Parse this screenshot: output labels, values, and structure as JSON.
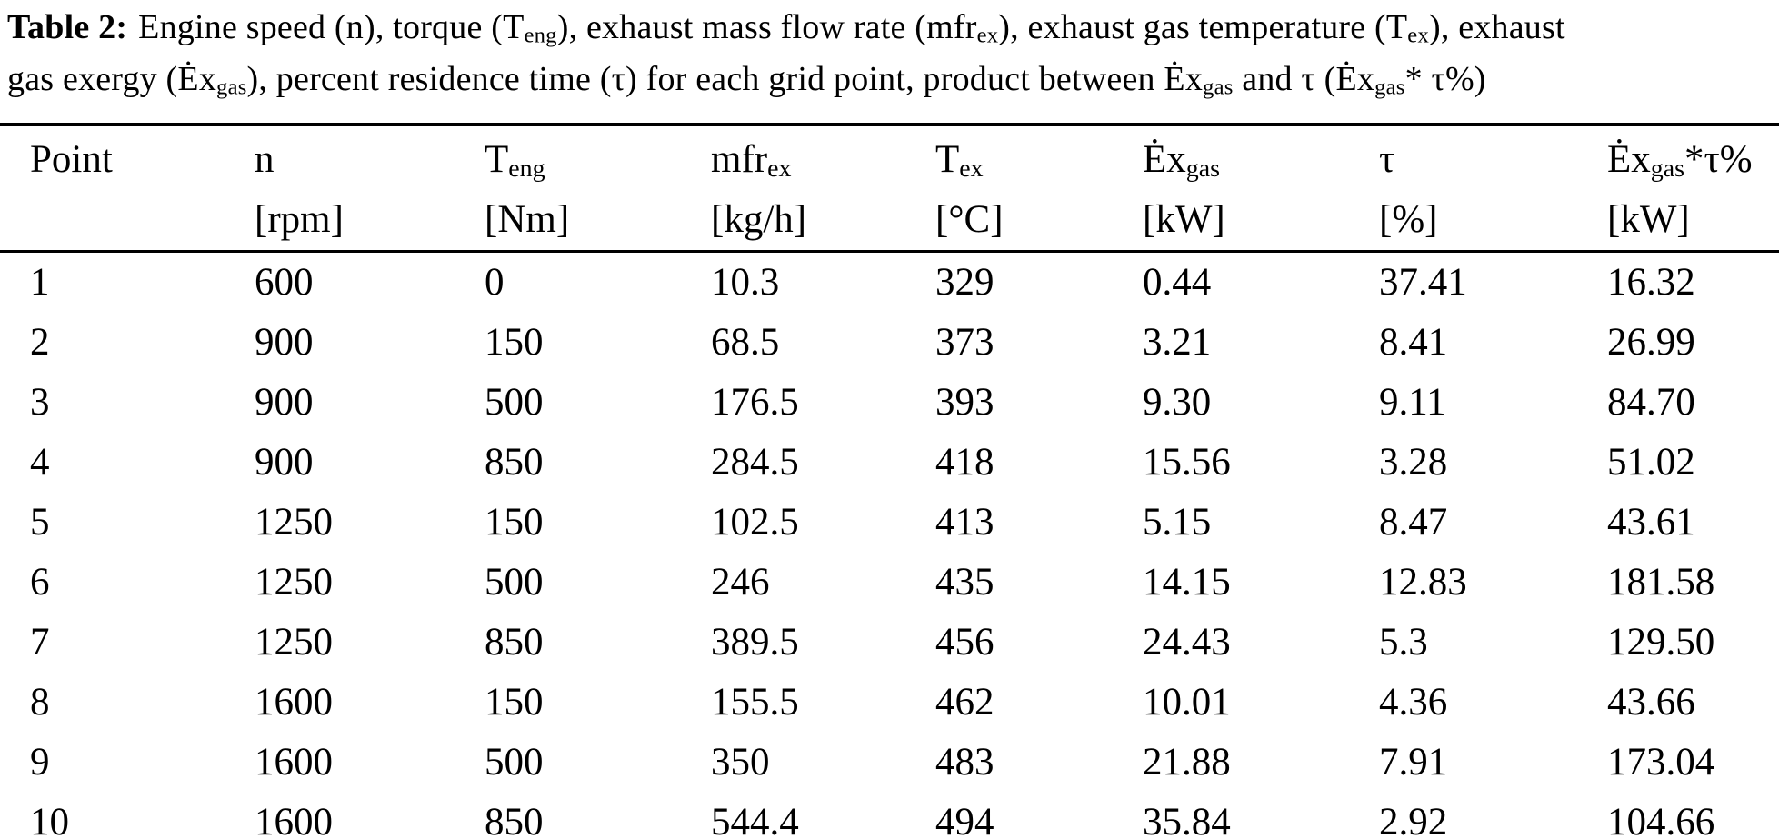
{
  "caption": {
    "line1": [
      {
        "t": "Table 2:",
        "style": "bold"
      },
      {
        "t": "Engine speed (n), torque (T"
      },
      {
        "t": "eng",
        "style": "sub"
      },
      {
        "t": "), exhaust mass flow rate (mfr"
      },
      {
        "t": "ex",
        "style": "sub"
      },
      {
        "t": "), exhaust gas temperature (T"
      },
      {
        "t": "ex",
        "style": "sub"
      },
      {
        "t": "), exhaust"
      }
    ],
    "line2": [
      {
        "t": "gas exergy (Ėx"
      },
      {
        "t": "gas",
        "style": "sub"
      },
      {
        "t": "), percent residence time (τ) for each grid point, product between Ėx"
      },
      {
        "t": "gas",
        "style": "sub"
      },
      {
        "t": " and τ (Ėx"
      },
      {
        "t": "gas",
        "style": "sub"
      },
      {
        "t": "* τ%)"
      }
    ]
  },
  "table": {
    "columns": [
      {
        "parts": [
          {
            "t": "Point"
          }
        ],
        "unit": ""
      },
      {
        "parts": [
          {
            "t": "n"
          }
        ],
        "unit": "[rpm]"
      },
      {
        "parts": [
          {
            "t": "T"
          },
          {
            "t": "eng",
            "style": "sub"
          }
        ],
        "unit": "[Nm]"
      },
      {
        "parts": [
          {
            "t": "mfr"
          },
          {
            "t": "ex",
            "style": "sub"
          }
        ],
        "unit": "[kg/h]"
      },
      {
        "parts": [
          {
            "t": "T"
          },
          {
            "t": "ex",
            "style": "sub"
          }
        ],
        "unit": "[°C]"
      },
      {
        "parts": [
          {
            "t": "Ėx"
          },
          {
            "t": "gas",
            "style": "sub"
          }
        ],
        "unit": "[kW]"
      },
      {
        "parts": [
          {
            "t": "τ"
          }
        ],
        "unit": "[%]"
      },
      {
        "parts": [
          {
            "t": "Ėx"
          },
          {
            "t": "gas",
            "style": "sub"
          },
          {
            "t": "*τ%"
          }
        ],
        "unit": "[kW]"
      }
    ],
    "rows": [
      [
        "1",
        "600",
        "0",
        "10.3",
        "329",
        "0.44",
        "37.41",
        "16.32"
      ],
      [
        "2",
        "900",
        "150",
        "68.5",
        "373",
        "3.21",
        "8.41",
        "26.99"
      ],
      [
        "3",
        "900",
        "500",
        "176.5",
        "393",
        "9.30",
        "9.11",
        "84.70"
      ],
      [
        "4",
        "900",
        "850",
        "284.5",
        "418",
        "15.56",
        "3.28",
        "51.02"
      ],
      [
        "5",
        "1250",
        "150",
        "102.5",
        "413",
        "5.15",
        "8.47",
        "43.61"
      ],
      [
        "6",
        "1250",
        "500",
        "246",
        "435",
        "14.15",
        "12.83",
        "181.58"
      ],
      [
        "7",
        "1250",
        "850",
        "389.5",
        "456",
        "24.43",
        "5.3",
        "129.50"
      ],
      [
        "8",
        "1600",
        "150",
        "155.5",
        "462",
        "10.01",
        "4.36",
        "43.66"
      ],
      [
        "9",
        "1600",
        "500",
        "350",
        "483",
        "21.88",
        "7.91",
        "173.04"
      ],
      [
        "10",
        "1600",
        "850",
        "544.4",
        "494",
        "35.84",
        "2.92",
        "104.66"
      ]
    ]
  }
}
